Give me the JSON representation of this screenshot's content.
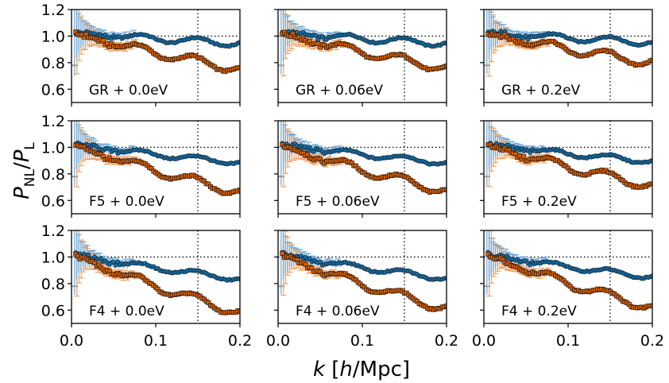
{
  "chart_data": {
    "type": "line",
    "ylabel": "P_NL / P_L",
    "ylabel_main": "P",
    "ylabel_sub1": "NL",
    "ylabel_slash": "/",
    "ylabel_sub2": "L",
    "xlabel": "k [h/Mpc]",
    "xlabel_k": "k",
    "xlabel_bracket_open": "[",
    "xlabel_h": "h",
    "xlabel_rest": "/Mpc]",
    "xlim": [
      0.0,
      0.2
    ],
    "ylim": [
      0.5,
      1.2
    ],
    "xticks": [
      "0.0",
      "0.1",
      "0.2"
    ],
    "yticks": [
      "0.6",
      "0.8",
      "1.0",
      "1.2"
    ],
    "reference_hline": 1.0,
    "reference_vline": 0.15,
    "colors": {
      "blue": "#1f77b4",
      "blue_marker": "#1b6fa3",
      "orange": "#e06c14",
      "orange_marker": "#d4620e",
      "light_blue": "#6fa8d6",
      "light_orange": "#f0a060",
      "gray": "#a0a0a0"
    },
    "x_points": [
      0.005,
      0.0075,
      0.01,
      0.0125,
      0.015,
      0.0175,
      0.02,
      0.0225,
      0.025,
      0.0275,
      0.03,
      0.0325,
      0.035,
      0.0375,
      0.04,
      0.0425,
      0.045,
      0.0475,
      0.05,
      0.0525,
      0.055,
      0.0575,
      0.06,
      0.0625,
      0.065,
      0.0675,
      0.07,
      0.0725,
      0.075,
      0.0775,
      0.08,
      0.0825,
      0.085,
      0.0875,
      0.09,
      0.0925,
      0.095,
      0.0975,
      0.1,
      0.1025,
      0.105,
      0.1075,
      0.11,
      0.1125,
      0.115,
      0.1175,
      0.12,
      0.1225,
      0.125,
      0.1275,
      0.13,
      0.1325,
      0.135,
      0.1375,
      0.14,
      0.1425,
      0.145,
      0.1475,
      0.15,
      0.1525,
      0.155,
      0.1575,
      0.16,
      0.1625,
      0.165,
      0.1675,
      0.17,
      0.1725,
      0.175,
      0.1775,
      0.18,
      0.1825,
      0.185,
      0.1875,
      0.19,
      0.1925,
      0.195,
      0.1975,
      0.2
    ],
    "panels": [
      {
        "label": "GR + 0.0eV",
        "row": 0,
        "col": 0,
        "linear_end": 0.945,
        "linear_wig": 0.025,
        "nonlinear_end": 0.75,
        "nonlinear_wig": 0.035
      },
      {
        "label": "GR + 0.06eV",
        "row": 0,
        "col": 1,
        "linear_end": 0.945,
        "linear_wig": 0.025,
        "nonlinear_end": 0.76,
        "nonlinear_wig": 0.035
      },
      {
        "label": "GR + 0.2eV",
        "row": 0,
        "col": 2,
        "linear_end": 0.955,
        "linear_wig": 0.025,
        "nonlinear_end": 0.8,
        "nonlinear_wig": 0.035
      },
      {
        "label": "F5 + 0.0eV",
        "row": 1,
        "col": 0,
        "linear_end": 0.885,
        "linear_wig": 0.02,
        "nonlinear_end": 0.66,
        "nonlinear_wig": 0.035
      },
      {
        "label": "F5 + 0.06eV",
        "row": 1,
        "col": 1,
        "linear_end": 0.885,
        "linear_wig": 0.02,
        "nonlinear_end": 0.67,
        "nonlinear_wig": 0.035
      },
      {
        "label": "F5 + 0.2eV",
        "row": 1,
        "col": 2,
        "linear_end": 0.895,
        "linear_wig": 0.02,
        "nonlinear_end": 0.71,
        "nonlinear_wig": 0.035
      },
      {
        "label": "F4 + 0.0eV",
        "row": 2,
        "col": 0,
        "linear_end": 0.835,
        "linear_wig": 0.02,
        "nonlinear_end": 0.58,
        "nonlinear_wig": 0.035
      },
      {
        "label": "F4 + 0.06eV",
        "row": 2,
        "col": 1,
        "linear_end": 0.84,
        "linear_wig": 0.02,
        "nonlinear_end": 0.61,
        "nonlinear_wig": 0.035
      },
      {
        "label": "F4 + 0.2eV",
        "row": 2,
        "col": 2,
        "linear_end": 0.85,
        "linear_wig": 0.02,
        "nonlinear_end": 0.62,
        "nonlinear_wig": 0.035
      }
    ]
  }
}
